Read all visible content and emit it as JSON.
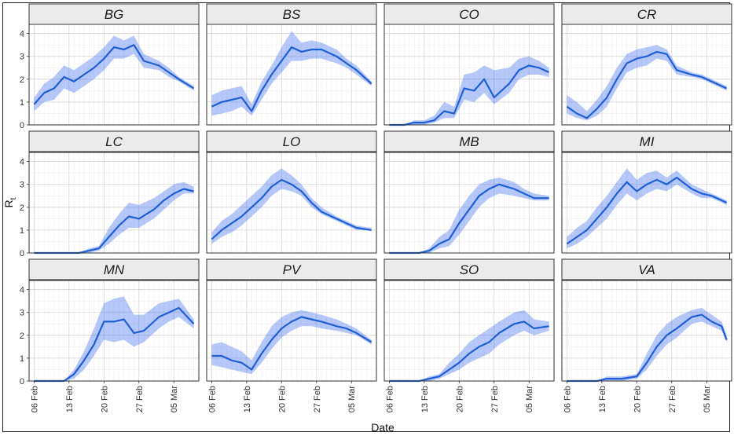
{
  "chart_data": {
    "type": "line",
    "xlabel": "Date",
    "ylabel": "R",
    "ylabel_subscript": "t",
    "ylim": [
      0,
      4.4
    ],
    "yticks": [
      0,
      1,
      2,
      3,
      4
    ],
    "x_start_date": "2020-02-06",
    "xticks": [
      {
        "label": "06 Feb",
        "date": "2020-02-06"
      },
      {
        "label": "13 Feb",
        "date": "2020-02-13"
      },
      {
        "label": "20 Feb",
        "date": "2020-02-20"
      },
      {
        "label": "27 Feb",
        "date": "2020-02-27"
      },
      {
        "label": "05 Mar",
        "date": "2020-03-05"
      }
    ],
    "xlim": [
      "2020-02-05",
      "2020-03-10"
    ],
    "grid": true,
    "panels": [
      {
        "name": "BG",
        "x": [
          "2020-02-06",
          "2020-02-08",
          "2020-02-10",
          "2020-02-12",
          "2020-02-14",
          "2020-02-16",
          "2020-02-18",
          "2020-02-20",
          "2020-02-22",
          "2020-02-24",
          "2020-02-26",
          "2020-02-28",
          "2020-03-02",
          "2020-03-04",
          "2020-03-06",
          "2020-03-09"
        ],
        "values": [
          0.9,
          1.4,
          1.6,
          2.1,
          1.9,
          2.2,
          2.5,
          2.9,
          3.4,
          3.3,
          3.5,
          2.8,
          2.6,
          2.3,
          2.0,
          1.6
        ],
        "lower": [
          0.6,
          1.0,
          1.1,
          1.6,
          1.4,
          1.7,
          2.0,
          2.4,
          2.9,
          2.9,
          3.1,
          2.5,
          2.4,
          2.1,
          1.9,
          1.5
        ],
        "upper": [
          1.2,
          1.8,
          2.1,
          2.6,
          2.4,
          2.7,
          3.0,
          3.4,
          3.9,
          3.7,
          3.9,
          3.1,
          2.8,
          2.5,
          2.1,
          1.7
        ]
      },
      {
        "name": "BS",
        "x": [
          "2020-02-06",
          "2020-02-08",
          "2020-02-10",
          "2020-02-12",
          "2020-02-14",
          "2020-02-16",
          "2020-02-18",
          "2020-02-20",
          "2020-02-22",
          "2020-02-24",
          "2020-02-26",
          "2020-02-28",
          "2020-03-02",
          "2020-03-04",
          "2020-03-06",
          "2020-03-09"
        ],
        "values": [
          0.8,
          1.0,
          1.1,
          1.2,
          0.6,
          1.5,
          2.2,
          2.8,
          3.4,
          3.2,
          3.3,
          3.3,
          3.0,
          2.7,
          2.4,
          1.8
        ],
        "lower": [
          0.4,
          0.5,
          0.6,
          0.8,
          0.4,
          1.1,
          1.8,
          2.3,
          2.8,
          2.8,
          2.9,
          2.9,
          2.7,
          2.5,
          2.2,
          1.7
        ],
        "upper": [
          1.3,
          1.5,
          1.6,
          1.7,
          0.9,
          1.9,
          2.6,
          3.4,
          4.1,
          3.6,
          3.7,
          3.6,
          3.3,
          2.9,
          2.6,
          1.9
        ]
      },
      {
        "name": "CO",
        "x": [
          "2020-02-06",
          "2020-02-09",
          "2020-02-11",
          "2020-02-13",
          "2020-02-15",
          "2020-02-17",
          "2020-02-19",
          "2020-02-21",
          "2020-02-23",
          "2020-02-25",
          "2020-02-27",
          "2020-03-01",
          "2020-03-03",
          "2020-03-05",
          "2020-03-07",
          "2020-03-09"
        ],
        "values": [
          0,
          0,
          0.1,
          0.1,
          0.2,
          0.6,
          0.5,
          1.6,
          1.5,
          2.0,
          1.2,
          1.8,
          2.4,
          2.6,
          2.5,
          2.3
        ],
        "lower": [
          0,
          0,
          0,
          0,
          0.1,
          0.3,
          0.3,
          1.1,
          1.0,
          1.4,
          0.9,
          1.4,
          2.0,
          2.2,
          2.2,
          2.1
        ],
        "upper": [
          0,
          0,
          0.2,
          0.2,
          0.4,
          1.0,
          0.8,
          2.2,
          2.3,
          2.6,
          2.4,
          2.5,
          2.9,
          3.0,
          2.8,
          2.5
        ]
      },
      {
        "name": "CR",
        "x": [
          "2020-02-06",
          "2020-02-08",
          "2020-02-10",
          "2020-02-12",
          "2020-02-14",
          "2020-02-16",
          "2020-02-18",
          "2020-02-20",
          "2020-02-22",
          "2020-02-24",
          "2020-02-26",
          "2020-02-28",
          "2020-03-02",
          "2020-03-04",
          "2020-03-06",
          "2020-03-09"
        ],
        "values": [
          0.8,
          0.5,
          0.3,
          0.7,
          1.2,
          2.0,
          2.7,
          2.9,
          3.0,
          3.2,
          3.1,
          2.4,
          2.2,
          2.1,
          1.9,
          1.6
        ],
        "lower": [
          0.5,
          0.3,
          0.2,
          0.4,
          0.8,
          1.6,
          2.3,
          2.5,
          2.6,
          2.9,
          2.8,
          2.2,
          2.1,
          2.0,
          1.8,
          1.5
        ],
        "upper": [
          1.3,
          1.0,
          0.6,
          1.1,
          1.7,
          2.5,
          3.1,
          3.3,
          3.4,
          3.5,
          3.3,
          2.6,
          2.3,
          2.2,
          2.0,
          1.7
        ]
      },
      {
        "name": "LC",
        "x": [
          "2020-02-06",
          "2020-02-09",
          "2020-02-12",
          "2020-02-15",
          "2020-02-17",
          "2020-02-19",
          "2020-02-21",
          "2020-02-23",
          "2020-02-25",
          "2020-02-27",
          "2020-03-01",
          "2020-03-03",
          "2020-03-05",
          "2020-03-07",
          "2020-03-09"
        ],
        "values": [
          0,
          0,
          0,
          0,
          0.1,
          0.2,
          0.7,
          1.2,
          1.6,
          1.5,
          1.9,
          2.3,
          2.6,
          2.8,
          2.7
        ],
        "lower": [
          0,
          0,
          0,
          0,
          0,
          0.1,
          0.4,
          0.8,
          1.1,
          1.1,
          1.5,
          1.9,
          2.3,
          2.6,
          2.6
        ],
        "upper": [
          0,
          0,
          0,
          0,
          0.2,
          0.3,
          1.1,
          1.7,
          2.2,
          2.1,
          2.4,
          2.7,
          3.0,
          3.1,
          2.9
        ]
      },
      {
        "name": "LO",
        "x": [
          "2020-02-06",
          "2020-02-08",
          "2020-02-10",
          "2020-02-12",
          "2020-02-14",
          "2020-02-16",
          "2020-02-18",
          "2020-02-20",
          "2020-02-22",
          "2020-02-24",
          "2020-02-26",
          "2020-02-28",
          "2020-03-02",
          "2020-03-04",
          "2020-03-06",
          "2020-03-09"
        ],
        "values": [
          0.6,
          1.0,
          1.3,
          1.6,
          2.0,
          2.4,
          2.9,
          3.2,
          3.0,
          2.7,
          2.2,
          1.8,
          1.5,
          1.3,
          1.1,
          1.0
        ],
        "lower": [
          0.4,
          0.7,
          0.9,
          1.2,
          1.6,
          2.0,
          2.5,
          2.8,
          2.7,
          2.5,
          2.0,
          1.7,
          1.4,
          1.2,
          1.0,
          1.0
        ],
        "upper": [
          0.9,
          1.4,
          1.7,
          2.1,
          2.5,
          2.9,
          3.4,
          3.7,
          3.4,
          3.0,
          2.4,
          2.0,
          1.6,
          1.4,
          1.2,
          1.1
        ]
      },
      {
        "name": "MB",
        "x": [
          "2020-02-06",
          "2020-02-09",
          "2020-02-12",
          "2020-02-14",
          "2020-02-16",
          "2020-02-18",
          "2020-02-20",
          "2020-02-22",
          "2020-02-24",
          "2020-02-26",
          "2020-02-28",
          "2020-03-02",
          "2020-03-04",
          "2020-03-06",
          "2020-03-09"
        ],
        "values": [
          0,
          0,
          0,
          0.1,
          0.4,
          0.6,
          1.3,
          1.9,
          2.5,
          2.8,
          3.0,
          2.8,
          2.6,
          2.4,
          2.4
        ],
        "lower": [
          0,
          0,
          0,
          0,
          0.2,
          0.3,
          0.8,
          1.4,
          2.0,
          2.4,
          2.6,
          2.5,
          2.4,
          2.3,
          2.3
        ],
        "upper": [
          0,
          0,
          0,
          0.2,
          0.7,
          1.0,
          1.9,
          2.5,
          3.0,
          3.2,
          3.3,
          3.1,
          2.8,
          2.6,
          2.5
        ]
      },
      {
        "name": "MI",
        "x": [
          "2020-02-06",
          "2020-02-08",
          "2020-02-10",
          "2020-02-12",
          "2020-02-14",
          "2020-02-16",
          "2020-02-18",
          "2020-02-20",
          "2020-02-22",
          "2020-02-24",
          "2020-02-26",
          "2020-02-28",
          "2020-03-02",
          "2020-03-04",
          "2020-03-06",
          "2020-03-09"
        ],
        "values": [
          0.4,
          0.7,
          1.0,
          1.5,
          2.0,
          2.6,
          3.1,
          2.7,
          3.0,
          3.2,
          3.0,
          3.3,
          2.8,
          2.6,
          2.5,
          2.2
        ],
        "lower": [
          0.2,
          0.4,
          0.7,
          1.1,
          1.5,
          2.1,
          2.6,
          2.3,
          2.6,
          2.8,
          2.7,
          3.0,
          2.6,
          2.4,
          2.4,
          2.1
        ],
        "upper": [
          0.7,
          1.1,
          1.4,
          2.0,
          2.5,
          3.1,
          3.7,
          3.2,
          3.5,
          3.6,
          3.3,
          3.6,
          3.0,
          2.8,
          2.6,
          2.3
        ]
      },
      {
        "name": "MN",
        "x": [
          "2020-02-06",
          "2020-02-09",
          "2020-02-12",
          "2020-02-14",
          "2020-02-16",
          "2020-02-18",
          "2020-02-20",
          "2020-02-22",
          "2020-02-24",
          "2020-02-26",
          "2020-02-28",
          "2020-03-02",
          "2020-03-04",
          "2020-03-06",
          "2020-03-09"
        ],
        "values": [
          0,
          0,
          0,
          0.3,
          0.9,
          1.6,
          2.6,
          2.6,
          2.7,
          2.1,
          2.2,
          2.8,
          3.0,
          3.2,
          2.5
        ],
        "lower": [
          0,
          0,
          0,
          0.1,
          0.5,
          1.1,
          1.8,
          1.7,
          1.8,
          1.5,
          1.7,
          2.3,
          2.6,
          2.8,
          2.3
        ],
        "upper": [
          0,
          0,
          0,
          0.5,
          1.3,
          2.3,
          3.4,
          3.6,
          3.7,
          2.9,
          2.9,
          3.4,
          3.5,
          3.6,
          2.7
        ]
      },
      {
        "name": "PV",
        "x": [
          "2020-02-06",
          "2020-02-08",
          "2020-02-10",
          "2020-02-12",
          "2020-02-14",
          "2020-02-16",
          "2020-02-18",
          "2020-02-20",
          "2020-02-22",
          "2020-02-24",
          "2020-02-26",
          "2020-02-28",
          "2020-03-02",
          "2020-03-04",
          "2020-03-06",
          "2020-03-09"
        ],
        "values": [
          1.1,
          1.1,
          0.9,
          0.8,
          0.5,
          1.2,
          1.8,
          2.3,
          2.6,
          2.8,
          2.7,
          2.6,
          2.4,
          2.3,
          2.1,
          1.7
        ],
        "lower": [
          0.7,
          0.6,
          0.5,
          0.4,
          0.3,
          0.8,
          1.4,
          1.9,
          2.2,
          2.4,
          2.4,
          2.3,
          2.2,
          2.1,
          2.0,
          1.6
        ],
        "upper": [
          1.6,
          1.7,
          1.5,
          1.3,
          0.9,
          1.7,
          2.4,
          2.8,
          3.0,
          3.1,
          3.0,
          2.9,
          2.7,
          2.5,
          2.3,
          1.8
        ]
      },
      {
        "name": "SO",
        "x": [
          "2020-02-06",
          "2020-02-09",
          "2020-02-12",
          "2020-02-14",
          "2020-02-16",
          "2020-02-18",
          "2020-02-20",
          "2020-02-22",
          "2020-02-24",
          "2020-02-26",
          "2020-02-28",
          "2020-03-02",
          "2020-03-04",
          "2020-03-06",
          "2020-03-09"
        ],
        "values": [
          0,
          0,
          0,
          0.1,
          0.2,
          0.5,
          0.8,
          1.2,
          1.5,
          1.7,
          2.1,
          2.5,
          2.6,
          2.3,
          2.4
        ],
        "lower": [
          0,
          0,
          0,
          0,
          0.1,
          0.3,
          0.5,
          0.8,
          1.0,
          1.2,
          1.6,
          2.0,
          2.2,
          2.0,
          2.2
        ],
        "upper": [
          0,
          0,
          0,
          0.2,
          0.3,
          0.8,
          1.2,
          1.7,
          2.0,
          2.3,
          2.6,
          3.0,
          3.1,
          2.7,
          2.6
        ]
      },
      {
        "name": "VA",
        "x": [
          "2020-02-06",
          "2020-02-09",
          "2020-02-12",
          "2020-02-14",
          "2020-02-17",
          "2020-02-20",
          "2020-02-22",
          "2020-02-24",
          "2020-02-26",
          "2020-02-28",
          "2020-03-02",
          "2020-03-04",
          "2020-03-06",
          "2020-03-08",
          "2020-03-09"
        ],
        "values": [
          0,
          0,
          0,
          0.1,
          0.1,
          0.2,
          0.8,
          1.5,
          2.0,
          2.3,
          2.8,
          2.9,
          2.6,
          2.4,
          1.8
        ],
        "lower": [
          0,
          0,
          0,
          0,
          0,
          0.1,
          0.5,
          1.1,
          1.6,
          1.9,
          2.5,
          2.6,
          2.4,
          2.2,
          1.7
        ],
        "upper": [
          0,
          0,
          0,
          0.2,
          0.2,
          0.3,
          1.2,
          2.0,
          2.5,
          2.8,
          3.1,
          3.2,
          2.9,
          2.6,
          2.0
        ]
      }
    ]
  }
}
